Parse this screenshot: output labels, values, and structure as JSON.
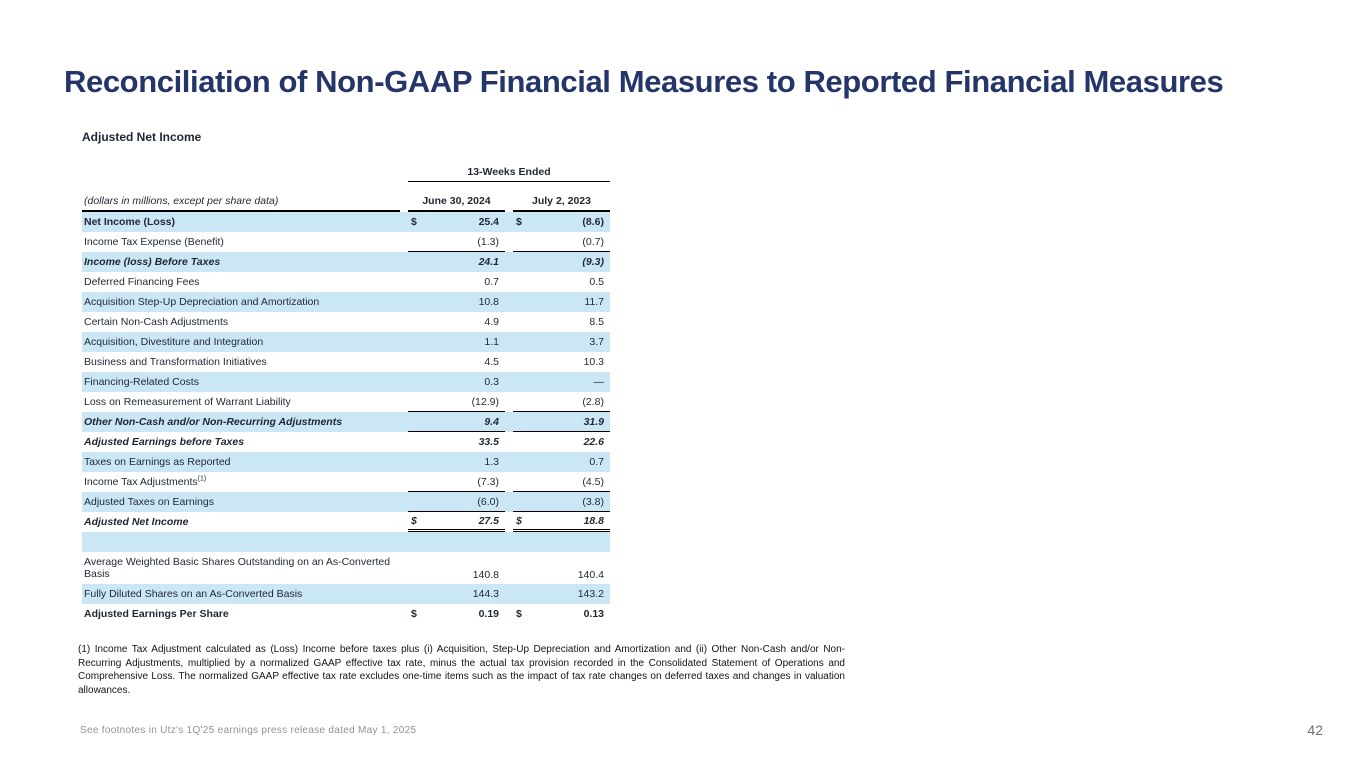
{
  "slide": {
    "title": "Reconciliation of Non-GAAP Financial Measures to Reported Financial Measures",
    "page_number": "42",
    "footer_note": "See footnotes in Utz's 1Q'25 earnings press release dated May 1, 2025"
  },
  "table": {
    "heading": "Adjusted Net Income",
    "period_header": "13-Weeks Ended",
    "units_note": "(dollars in millions, except per share data)",
    "columns": [
      "June 30, 2024",
      "July 2, 2023"
    ],
    "rows": [
      {
        "label": "Net Income (Loss)",
        "bold": true,
        "bg": "blue",
        "dollar": true,
        "v1": "25.4",
        "v2": "(8.6)"
      },
      {
        "label": "Income Tax Expense (Benefit)",
        "bg": "white",
        "v1": "(1.3)",
        "v2": "(0.7)",
        "underline": "single"
      },
      {
        "label": "Income (loss) Before Taxes",
        "bold": true,
        "italic": true,
        "bg": "blue",
        "v1": "24.1",
        "v2": "(9.3)"
      },
      {
        "label": "Deferred Financing Fees",
        "bg": "white",
        "v1": "0.7",
        "v2": "0.5"
      },
      {
        "label": "Acquisition Step-Up Depreciation and Amortization",
        "bg": "blue",
        "v1": "10.8",
        "v2": "11.7"
      },
      {
        "label": "Certain Non-Cash Adjustments",
        "bg": "white",
        "v1": "4.9",
        "v2": "8.5"
      },
      {
        "label": "Acquisition, Divestiture and Integration",
        "bg": "blue",
        "v1": "1.1",
        "v2": "3.7"
      },
      {
        "label": "Business and Transformation Initiatives",
        "bg": "white",
        "v1": "4.5",
        "v2": "10.3"
      },
      {
        "label": "Financing-Related Costs",
        "bg": "blue",
        "v1": "0.3",
        "v2": "—"
      },
      {
        "label": "Loss on Remeasurement of Warrant Liability",
        "bg": "white",
        "v1": "(12.9)",
        "v2": "(2.8)",
        "underline": "single"
      },
      {
        "label": "Other Non-Cash and/or Non-Recurring Adjustments",
        "bold": true,
        "italic": true,
        "bg": "blue",
        "v1": "9.4",
        "v2": "31.9",
        "underline": "single"
      },
      {
        "label": "Adjusted Earnings before Taxes",
        "bold": true,
        "italic": true,
        "bg": "white",
        "v1": "33.5",
        "v2": "22.6"
      },
      {
        "label": "Taxes on Earnings as Reported",
        "bg": "blue",
        "v1": "1.3",
        "v2": "0.7"
      },
      {
        "label": "Income Tax Adjustments",
        "sup": "(1)",
        "bg": "white",
        "v1": "(7.3)",
        "v2": "(4.5)",
        "underline": "single"
      },
      {
        "label": "Adjusted Taxes on Earnings",
        "bg": "blue",
        "v1": "(6.0)",
        "v2": "(3.8)",
        "underline": "single"
      },
      {
        "label": "Adjusted Net Income",
        "bold": true,
        "italic": true,
        "bg": "white",
        "dollar": true,
        "v1": "27.5",
        "v2": "18.8",
        "underline": "double"
      },
      {
        "label": "",
        "bg": "blue",
        "spacer": true
      },
      {
        "label": "Average Weighted Basic Shares Outstanding on an As-Converted Basis",
        "bg": "white",
        "tall": true,
        "v1": "140.8",
        "v2": "140.4"
      },
      {
        "label": "Fully Diluted Shares on an As-Converted Basis",
        "bg": "blue",
        "v1": "144.3",
        "v2": "143.2"
      },
      {
        "label": "Adjusted Earnings Per Share",
        "bold": true,
        "bg": "white",
        "dollar": true,
        "v1": "0.19",
        "v2": "0.13"
      }
    ]
  },
  "footnote": {
    "text": "(1) Income Tax Adjustment calculated as (Loss) Income before taxes plus (i) Acquisition, Step-Up Depreciation and Amortization and (ii) Other Non-Cash and/or Non-Recurring Adjustments, multiplied by a normalized GAAP effective tax rate, minus the actual tax provision recorded in the Consolidated Statement of Operations and Comprehensive Loss. The normalized GAAP effective tax rate excludes one-time items such as the impact of tax rate changes on deferred taxes and changes in valuation allowances."
  },
  "colors": {
    "accent_navy": "#233569",
    "row_blue": "#cbe7f6",
    "footer_gray": "#8f9296"
  }
}
